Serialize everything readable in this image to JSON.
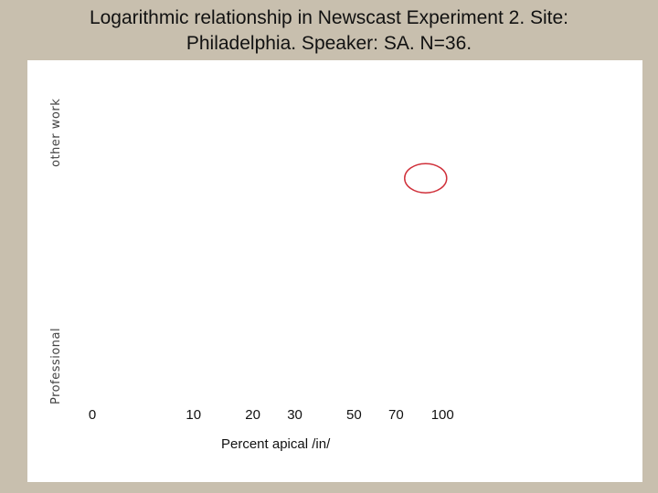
{
  "title_lines": [
    "Logarithmic relationship in Newscast Experiment 2. Site:",
    "Philadelphia. Speaker: SA. N=36."
  ],
  "chart_data": {
    "type": "scatter",
    "title": "Logarithmic relationship in Newscast Experiment 2. Site: Philadelphia. Speaker: SA. N=36.",
    "xlabel": "Percent apical /in/",
    "ylabel_top": "other work",
    "ylabel_bottom": "Professional",
    "x_scale": "log",
    "x_ticks": [
      0,
      10,
      20,
      30,
      50,
      70,
      100
    ],
    "points": [
      {
        "x": 88,
        "y": 0.68
      }
    ],
    "marker": "open-ellipse",
    "marker_color": "#d0303a",
    "grid": false
  }
}
